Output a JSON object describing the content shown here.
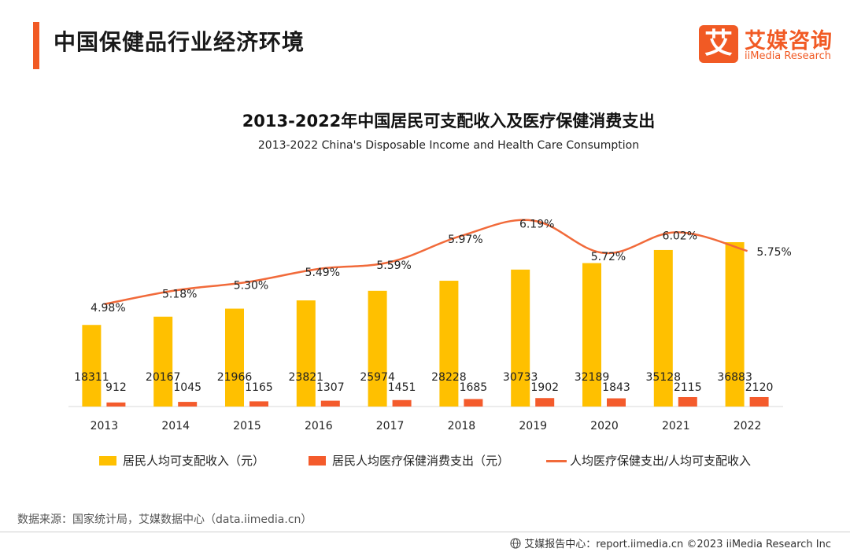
{
  "page": {
    "title": "中国保健品行业经济环境"
  },
  "logo": {
    "glyph": "艾",
    "cn": "艾媒咨询",
    "en": "iiMedia Research"
  },
  "colors": {
    "accent": "#f15a24",
    "bar_income": "#ffc000",
    "bar_health": "#f45b2c",
    "line": "#f16a3a"
  },
  "chart_data": {
    "type": "bar",
    "title": "2013-2022年中国居民可支配收入及医疗保健消费支出",
    "subtitle": "2013-2022  China's Disposable Income and Health Care Consumption",
    "categories": [
      "2013",
      "2014",
      "2015",
      "2016",
      "2017",
      "2018",
      "2019",
      "2020",
      "2021",
      "2022"
    ],
    "series": [
      {
        "name": "居民人均可支配收入（元）",
        "type": "bar",
        "values": [
          18311,
          20167,
          21966,
          23821,
          25974,
          28228,
          30733,
          32189,
          35128,
          36883
        ]
      },
      {
        "name": "居民人均医疗保健消费支出（元）",
        "type": "bar",
        "values": [
          912,
          1045,
          1165,
          1307,
          1451,
          1685,
          1902,
          1843,
          2115,
          2120
        ]
      },
      {
        "name": "人均医疗保健支出/人均可支配收入",
        "type": "line",
        "values": [
          4.98,
          5.18,
          5.3,
          5.49,
          5.59,
          5.97,
          6.19,
          5.72,
          6.02,
          5.75
        ],
        "labels": [
          "4.98%",
          "5.18%",
          "5.30%",
          "5.49%",
          "5.59%",
          "5.97%",
          "6.19%",
          "5.72%",
          "6.02%",
          "5.75%"
        ]
      }
    ],
    "bar_ylim": [
      0,
      45000
    ],
    "line_ylim": [
      3.5,
      6.4
    ],
    "grid": false,
    "legend_position": "bottom"
  },
  "source": "数据来源：国家统计局，艾媒数据中心（data.iimedia.cn）",
  "footer": "艾媒报告中心：report.iimedia.cn ©2023 iiMedia Research Inc",
  "icons": {
    "footer": "globe-icon"
  }
}
